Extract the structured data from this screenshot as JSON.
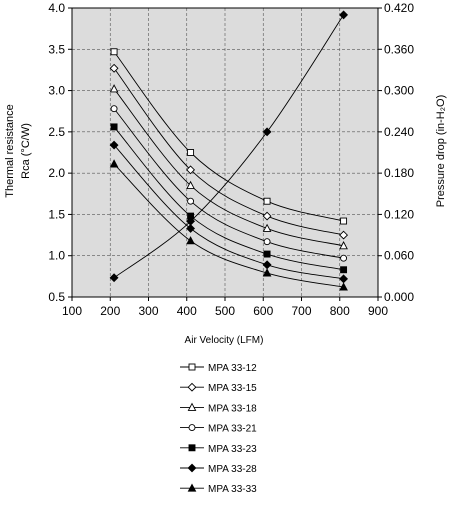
{
  "chart_data": {
    "type": "line",
    "title": "",
    "xlabel": "Air Velocity (LFM)",
    "ylabel_left_line1": "Thermal resistance",
    "ylabel_left_line2": "Rca  (°C/W)",
    "ylabel_right": "Pressure drop  (in-H₂O)",
    "xlim": [
      100,
      900
    ],
    "ylim_left": [
      0.5,
      4.0
    ],
    "ylim_right": [
      0.0,
      0.42
    ],
    "x_ticks": [
      "100",
      "200",
      "300",
      "400",
      "500",
      "600",
      "700",
      "800",
      "900"
    ],
    "y_left_ticks": [
      "0.5",
      "1.0",
      "1.5",
      "2.0",
      "2.5",
      "3.0",
      "3.5",
      "4.0"
    ],
    "y_right_ticks": [
      "0.000",
      "0.060",
      "0.120",
      "0.180",
      "0.240",
      "0.300",
      "0.360",
      "0.420"
    ],
    "x": [
      210,
      410,
      610,
      810
    ],
    "series": [
      {
        "name": "MPA 33-12",
        "marker": "square-open",
        "values": [
          3.47,
          2.25,
          1.66,
          1.42
        ]
      },
      {
        "name": "MPA 33-15",
        "marker": "diamond-open",
        "values": [
          3.27,
          2.04,
          1.48,
          1.25
        ]
      },
      {
        "name": "MPA 33-18",
        "marker": "triangle-open",
        "values": [
          3.02,
          1.85,
          1.33,
          1.12
        ]
      },
      {
        "name": "MPA 33-21",
        "marker": "circle-open",
        "values": [
          2.78,
          1.66,
          1.17,
          0.97
        ]
      },
      {
        "name": "MPA 33-23",
        "marker": "square-filled",
        "values": [
          2.56,
          1.48,
          1.02,
          0.83
        ]
      },
      {
        "name": "MPA 33-28",
        "marker": "diamond-filled",
        "values": [
          2.34,
          1.33,
          0.89,
          0.72
        ]
      },
      {
        "name": "MPA 33-33",
        "marker": "triangle-filled",
        "values": [
          2.11,
          1.18,
          0.79,
          0.62
        ]
      }
    ],
    "pressure_drop": {
      "axis": "right",
      "marker": "diamond-filled",
      "x": [
        210,
        410,
        610,
        810
      ],
      "values": [
        0.028,
        0.11,
        0.24,
        0.41
      ]
    },
    "grid": true,
    "plot_background": "#dcdcdc",
    "legend_position": "bottom"
  }
}
